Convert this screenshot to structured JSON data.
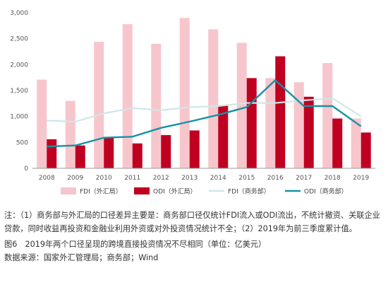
{
  "chart_data": {
    "type": "bar",
    "categories": [
      "2008",
      "2009",
      "2010",
      "2011",
      "2012",
      "2013",
      "2014",
      "2015",
      "2016",
      "2017",
      "2018",
      "2019"
    ],
    "ylim": [
      0,
      3000
    ],
    "yticks": [
      0,
      500,
      1000,
      1500,
      2000,
      2500,
      3000
    ],
    "ytick_labels": [
      "0",
      "500",
      "1,000",
      "1,500",
      "2,000",
      "2,500",
      "3,000"
    ],
    "series": [
      {
        "name": "FDI（外汇局）",
        "kind": "bar",
        "color": "#f7c6cc",
        "values": [
          1710,
          1300,
          2440,
          2780,
          2400,
          2900,
          2680,
          2420,
          1740,
          1660,
          2030,
          960
        ]
      },
      {
        "name": "ODI（外汇局）",
        "kind": "bar",
        "color": "#c00020",
        "values": [
          560,
          440,
          590,
          480,
          640,
          730,
          1210,
          1740,
          2160,
          1380,
          960,
          690
        ]
      },
      {
        "name": "FDI（商务部）",
        "kind": "line",
        "color": "#cfe6e8",
        "values": [
          920,
          900,
          1060,
          1160,
          1120,
          1180,
          1200,
          1260,
          1260,
          1310,
          1350,
          1000
        ]
      },
      {
        "name": "ODI（商务部）",
        "kind": "line",
        "color": "#1592a4",
        "values": [
          420,
          440,
          590,
          610,
          780,
          900,
          1030,
          1180,
          1700,
          1200,
          1200,
          810
        ]
      }
    ],
    "grid": false,
    "legend": "bottom"
  },
  "notes": {
    "body": "注：（1）商务部与外汇局的口径差异主要是：商务部口径仅统计FDI流入或ODI流出，不统计撤资、关联企业贷款，同时收益再投资和金融业利用外资或对外投资情况统计不全；（2）2019年为前三季度累计值。",
    "caption": "图6　2019年两个口径呈现的跨境直接投资情况不尽相同（单位：亿美元）",
    "source": "数据来源：国家外汇管理局；商务部；Wind"
  }
}
